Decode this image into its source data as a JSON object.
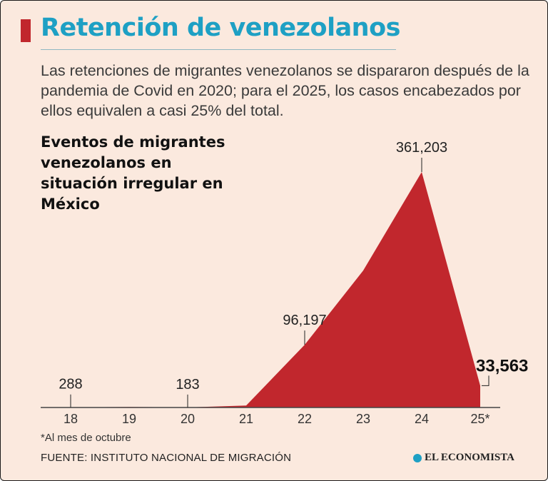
{
  "title": "Retención de venezolanos",
  "subtitle": "Las retenciones de migrantes venezolanos se dispararon después de la pandemia de Covid en 2020; para el 2025, los casos encabezados por ellos equivalen a casi 25% del total.",
  "colors": {
    "accent": "#c1272d",
    "title": "#1ea0c4",
    "background": "#fbe9de"
  },
  "chart_data": {
    "type": "area",
    "title": "Eventos de migrantes venezolanos en situación irregular en México",
    "categories": [
      "18",
      "19",
      "20",
      "21",
      "22",
      "23",
      "24",
      "25*"
    ],
    "values": [
      288,
      800,
      183,
      3000,
      96197,
      210000,
      361203,
      33563
    ],
    "labeled_points": [
      {
        "category": "18",
        "label": "288"
      },
      {
        "category": "20",
        "label": "183"
      },
      {
        "category": "22",
        "label": "96,197"
      },
      {
        "category": "24",
        "label": "361,203"
      },
      {
        "category": "25*",
        "label": "33,563"
      }
    ],
    "ylim": [
      0,
      380000
    ],
    "xlabel": "",
    "ylabel": "",
    "grid": false,
    "series_color": "#c1272d"
  },
  "footnote": "*Al mes de octubre",
  "source": "FUENTE: INSTITUTO NACIONAL DE MIGRACIÓN",
  "brand": {
    "name": "EL ECONOMISTA",
    "icon": "el-economista-logo-icon"
  }
}
